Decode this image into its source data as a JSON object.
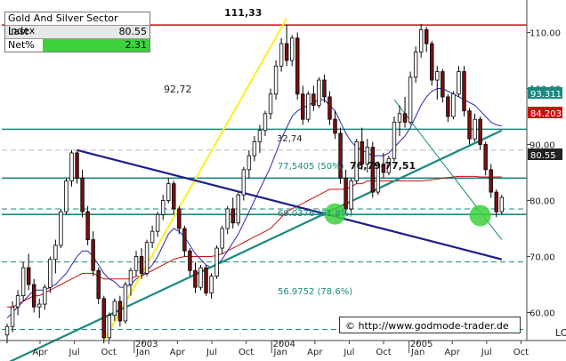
{
  "info_box": {
    "title": "Gold And Silver Sector Index",
    "last_label": "Last",
    "last_value": "80.55",
    "net_label": "Net%",
    "net_value": "2.31"
  },
  "copyright": "© http://www.godmode-trader.de",
  "corner_label": "LO",
  "colors": {
    "up_candle": "#ffffff",
    "down_candle": "#7a0f0f",
    "teal": "#1a8a7f",
    "navy": "#1c1c8c",
    "yellow": "#ffee33",
    "red": "#cc1111",
    "ma_blue": "#2a2ab0",
    "green_highlight": "#3ed13e"
  },
  "chart_data": {
    "type": "candlestick",
    "x_ticks": [
      "Apr",
      "Jul",
      "Oct",
      "Jan",
      "Apr",
      "Jul",
      "Oct",
      "Jan",
      "Apr",
      "Jul",
      "Oct",
      "Jan",
      "Apr",
      "Jul",
      "Oct"
    ],
    "year_labels": [
      "2003",
      "2004",
      "2005"
    ],
    "y_ticks": [
      60.0,
      70.0,
      80.0,
      90.0,
      100.0,
      110.0
    ],
    "ylim": [
      55,
      115
    ],
    "price_labels": [
      {
        "text": "93.311",
        "value": 93.311,
        "bg": "#1a8a7f"
      },
      {
        "text": "84.203",
        "value": 84.203,
        "bg": "#cc1111"
      },
      {
        "text": "80.55",
        "value": 80.55,
        "bg": "#222222"
      }
    ],
    "annotations": [
      "111,33",
      "92,72",
      "32,74",
      "76,79-77,51",
      "77,5405 (50%)",
      "69.0376 (61.8%)",
      "56.9752 (78.6%)"
    ],
    "candles": [
      [
        56.0,
        58.0,
        54.5,
        57.5
      ],
      [
        57.5,
        62.0,
        56.5,
        61.0
      ],
      [
        61.0,
        64.0,
        59.5,
        63.0
      ],
      [
        63.0,
        69.0,
        62.0,
        68.0
      ],
      [
        68.0,
        70.5,
        64.0,
        65.0
      ],
      [
        65.0,
        66.0,
        60.0,
        61.0
      ],
      [
        61.0,
        62.5,
        59.0,
        61.5
      ],
      [
        61.5,
        65.0,
        60.5,
        64.5
      ],
      [
        64.5,
        70.0,
        63.5,
        69.5
      ],
      [
        69.5,
        73.0,
        67.0,
        72.0
      ],
      [
        72.0,
        78.5,
        71.5,
        78.0
      ],
      [
        78.0,
        84.0,
        77.5,
        83.5
      ],
      [
        83.5,
        89.0,
        82.5,
        88.5
      ],
      [
        88.5,
        88.8,
        83.0,
        84.0
      ],
      [
        84.0,
        85.5,
        77.0,
        78.0
      ],
      [
        78.0,
        79.0,
        72.0,
        73.0
      ],
      [
        73.0,
        74.5,
        66.5,
        67.5
      ],
      [
        67.5,
        68.0,
        61.5,
        62.5
      ],
      [
        62.5,
        63.0,
        54.5,
        55.5
      ],
      [
        55.5,
        60.0,
        55.0,
        59.5
      ],
      [
        59.5,
        62.5,
        58.5,
        62.0
      ],
      [
        62.0,
        63.0,
        57.5,
        58.5
      ],
      [
        58.5,
        65.5,
        58.0,
        65.0
      ],
      [
        65.0,
        68.0,
        63.0,
        67.5
      ],
      [
        67.5,
        71.0,
        66.5,
        70.0
      ],
      [
        70.0,
        71.5,
        66.0,
        67.0
      ],
      [
        67.0,
        73.0,
        66.5,
        72.5
      ],
      [
        72.5,
        75.5,
        71.5,
        74.5
      ],
      [
        74.5,
        78.0,
        73.5,
        77.5
      ],
      [
        77.5,
        81.0,
        76.5,
        80.0
      ],
      [
        80.0,
        84.0,
        79.5,
        83.0
      ],
      [
        83.0,
        83.5,
        77.5,
        78.5
      ],
      [
        78.5,
        79.0,
        74.0,
        75.0
      ],
      [
        75.0,
        75.5,
        70.0,
        71.0
      ],
      [
        71.0,
        71.5,
        66.5,
        67.5
      ],
      [
        67.5,
        69.0,
        63.5,
        64.5
      ],
      [
        64.5,
        68.5,
        64.0,
        68.0
      ],
      [
        68.0,
        68.5,
        63.0,
        63.5
      ],
      [
        63.5,
        67.0,
        62.5,
        66.5
      ],
      [
        66.5,
        72.0,
        66.0,
        71.5
      ],
      [
        71.5,
        75.5,
        70.5,
        75.0
      ],
      [
        75.0,
        79.0,
        74.0,
        78.5
      ],
      [
        78.5,
        80.5,
        75.0,
        76.0
      ],
      [
        76.0,
        81.5,
        75.5,
        81.0
      ],
      [
        81.0,
        86.0,
        80.0,
        85.5
      ],
      [
        85.5,
        89.0,
        84.0,
        88.0
      ],
      [
        88.0,
        91.5,
        87.0,
        90.5
      ],
      [
        90.5,
        93.5,
        88.5,
        92.5
      ],
      [
        92.5,
        96.0,
        91.5,
        95.5
      ],
      [
        95.5,
        100.0,
        94.5,
        99.0
      ],
      [
        99.0,
        105.0,
        98.0,
        104.0
      ],
      [
        104.0,
        109.0,
        103.0,
        108.0
      ],
      [
        108.0,
        111.33,
        104.0,
        105.0
      ],
      [
        105.0,
        109.5,
        104.0,
        109.0
      ],
      [
        109.0,
        110.0,
        98.0,
        99.0
      ],
      [
        99.0,
        100.5,
        93.5,
        94.5
      ],
      [
        94.5,
        99.5,
        94.0,
        99.0
      ],
      [
        99.0,
        100.5,
        96.0,
        97.0
      ],
      [
        97.0,
        102.0,
        96.5,
        101.5
      ],
      [
        101.5,
        102.5,
        97.5,
        98.5
      ],
      [
        98.5,
        99.5,
        93.5,
        94.5
      ],
      [
        94.5,
        96.0,
        91.0,
        92.0
      ],
      [
        92.0,
        93.0,
        83.0,
        84.0
      ],
      [
        84.0,
        85.5,
        77.5,
        78.5
      ],
      [
        78.5,
        84.0,
        77.5,
        83.5
      ],
      [
        83.5,
        91.0,
        83.0,
        90.5
      ],
      [
        90.5,
        93.0,
        85.5,
        86.5
      ],
      [
        86.5,
        91.0,
        85.0,
        89.5
      ],
      [
        89.5,
        90.5,
        80.5,
        81.5
      ],
      [
        81.5,
        87.0,
        81.0,
        86.5
      ],
      [
        86.5,
        88.5,
        84.0,
        85.0
      ],
      [
        85.0,
        88.0,
        84.5,
        87.5
      ],
      [
        87.5,
        95.0,
        87.0,
        94.0
      ],
      [
        94.0,
        97.0,
        91.5,
        95.5
      ],
      [
        95.5,
        98.5,
        93.0,
        94.0
      ],
      [
        94.0,
        103.0,
        93.5,
        102.0
      ],
      [
        102.0,
        107.5,
        101.0,
        106.5
      ],
      [
        106.5,
        111.5,
        105.5,
        110.5
      ],
      [
        110.5,
        111.0,
        106.5,
        108.0
      ],
      [
        108.0,
        108.5,
        100.5,
        101.5
      ],
      [
        101.5,
        104.0,
        98.0,
        103.0
      ],
      [
        103.0,
        103.5,
        97.5,
        98.5
      ],
      [
        98.5,
        99.0,
        94.0,
        95.0
      ],
      [
        95.0,
        99.5,
        94.5,
        99.0
      ],
      [
        99.0,
        104.0,
        98.5,
        103.0
      ],
      [
        103.0,
        104.0,
        95.0,
        96.0
      ],
      [
        96.0,
        96.5,
        90.0,
        91.0
      ],
      [
        91.0,
        95.5,
        90.5,
        94.5
      ],
      [
        94.5,
        95.0,
        89.0,
        90.0
      ],
      [
        90.0,
        90.5,
        84.5,
        85.5
      ],
      [
        85.5,
        86.5,
        80.5,
        81.5
      ],
      [
        81.5,
        82.0,
        77.0,
        78.0
      ],
      [
        78.0,
        81.0,
        77.5,
        80.55
      ]
    ],
    "ma_red": [
      61,
      61,
      61.5,
      62,
      62.5,
      63,
      63,
      63.5,
      64,
      64.5,
      65,
      65.5,
      66,
      66.5,
      67,
      67,
      67,
      66.5,
      66,
      66,
      66,
      66,
      66,
      66,
      66.5,
      66.5,
      67,
      67.5,
      68,
      68.5,
      69,
      69.5,
      69.8,
      70,
      70,
      70,
      70,
      70,
      70,
      70.2,
      70.5,
      71,
      71.5,
      72,
      72.5,
      73,
      73.5,
      74,
      74.5,
      75,
      76,
      77,
      78,
      78.5,
      79,
      79.5,
      80,
      80.5,
      81,
      81.5,
      82,
      82,
      82,
      82,
      82.5,
      83,
      83,
      83.5,
      83.5,
      83.5,
      83.5,
      83.5,
      83.5,
      83.5,
      83.5,
      83.5,
      83.5,
      83.5,
      83.6,
      83.7,
      83.8,
      84,
      84.1,
      84.2,
      84.3,
      84.3,
      84.3,
      84.3,
      84.2,
      84.2,
      84.2,
      84.2,
      84.203
    ],
    "ma_blue": [
      59,
      60,
      61,
      62,
      63,
      64,
      64,
      64,
      64.5,
      65,
      66,
      67,
      68.5,
      70,
      71,
      71,
      70,
      68.5,
      67,
      66,
      65.5,
      64.5,
      64.5,
      65,
      66,
      66.5,
      67.5,
      68.5,
      70,
      72,
      74,
      75,
      74.5,
      73.5,
      72,
      70.5,
      69.5,
      68.5,
      68,
      68.5,
      69.5,
      71,
      72.5,
      74,
      76,
      78,
      80,
      82,
      84,
      86,
      88.5,
      91,
      93,
      95,
      96,
      96.5,
      97,
      97.5,
      98,
      98,
      97,
      96,
      94,
      92,
      90.5,
      89.5,
      89,
      88.5,
      88,
      88,
      88,
      88.5,
      89.5,
      90.5,
      91.5,
      93,
      95,
      97,
      98.5,
      99.5,
      100,
      100,
      99.5,
      99,
      98.5,
      98,
      97.5,
      97,
      96,
      95,
      94,
      93.5,
      93.311
    ],
    "hlines": [
      {
        "value": 111.33,
        "color": "#cc1111",
        "style": "solid"
      },
      {
        "value": 92.72,
        "color": "#1a8a7f",
        "style": "solid"
      },
      {
        "value": 89.0,
        "color": "#bbbbbb",
        "style": "dashed"
      },
      {
        "value": 84.0,
        "color": "#1a8a7f",
        "style": "solid"
      },
      {
        "value": 78.5,
        "color": "#1a8a7f",
        "style": "dashed"
      },
      {
        "value": 77.51,
        "color": "#1a8a7f",
        "style": "solid"
      },
      {
        "value": 69.0376,
        "color": "#1a8a7f",
        "style": "dashed"
      },
      {
        "value": 56.9752,
        "color": "#1a8a7f",
        "style": "dashed"
      }
    ],
    "trendlines": [
      {
        "name": "yellow",
        "from": [
          18,
          55.0
        ],
        "to": [
          52,
          112.5
        ],
        "color": "#ffee33"
      },
      {
        "name": "navy",
        "from": [
          13,
          89.0
        ],
        "to": [
          92,
          69.5
        ],
        "color": "#1c1c8c"
      },
      {
        "name": "teal-up",
        "from": [
          0,
          51.0
        ],
        "to": [
          92,
          92.5
        ],
        "color": "#1a8a7f"
      },
      {
        "name": "teal-down",
        "from": [
          72,
          98.0
        ],
        "to": [
          92,
          73.0
        ],
        "color": "#1a8a7f"
      }
    ]
  }
}
